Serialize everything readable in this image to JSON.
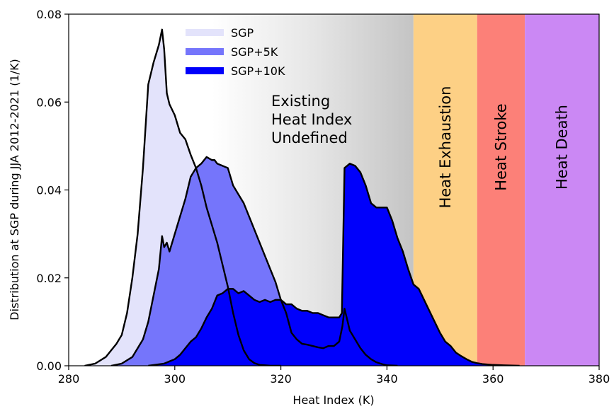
{
  "chart_data": {
    "type": "area",
    "title": "",
    "xlabel": "Heat Index (K)",
    "ylabel": "Distribution at SGP during JJA 2012-2021 (1/K)",
    "xlim": [
      280,
      380
    ],
    "ylim": [
      0,
      0.08
    ],
    "xticks": [
      "280",
      "300",
      "320",
      "340",
      "360",
      "380"
    ],
    "yticks": [
      "0.00",
      "0.02",
      "0.04",
      "0.06",
      "0.08"
    ],
    "grid": false,
    "legend": "top-center",
    "regions": [
      {
        "label": "Existing Heat Index Undefined",
        "lines": [
          "Existing",
          "Heat Index",
          "Undefined"
        ],
        "x0": 307,
        "x1": 345,
        "color": "#c8c8c8",
        "gradient": true
      },
      {
        "label": "Heat Exhaustion",
        "x0": 345,
        "x1": 357,
        "color": "#fdd085"
      },
      {
        "label": "Heat Stroke",
        "x0": 357,
        "x1": 366,
        "color": "#fc8078"
      },
      {
        "label": "Heat Death",
        "x0": 366,
        "x1": 380,
        "color": "#cb88f4"
      }
    ],
    "series": [
      {
        "name": "SGP",
        "color": "#e3e3fb",
        "x": [
          283,
          285,
          287,
          288,
          289,
          290,
          291,
          292,
          293,
          294,
          295,
          296,
          297,
          297.6,
          298,
          298.5,
          299,
          300,
          301,
          302,
          303,
          304,
          305,
          306,
          307,
          308,
          309,
          310,
          311,
          312,
          313,
          314,
          315,
          316,
          317,
          318,
          319,
          320
        ],
        "values": [
          0,
          0.0005,
          0.002,
          0.0035,
          0.005,
          0.007,
          0.012,
          0.02,
          0.03,
          0.045,
          0.064,
          0.069,
          0.073,
          0.0765,
          0.072,
          0.062,
          0.0595,
          0.057,
          0.053,
          0.0515,
          0.048,
          0.045,
          0.041,
          0.036,
          0.032,
          0.028,
          0.023,
          0.018,
          0.012,
          0.007,
          0.0035,
          0.0015,
          0.0006,
          0.0002,
          0.0001,
          0,
          0,
          0
        ]
      },
      {
        "name": "SGP+5K",
        "color": "#7575fb",
        "x": [
          288,
          290,
          292,
          294,
          295,
          296,
          297,
          297.6,
          298,
          298.5,
          299,
          300,
          301,
          302,
          303,
          304,
          305,
          306,
          307,
          307.5,
          308,
          309,
          310,
          311,
          312,
          313,
          314,
          315,
          316,
          317,
          318,
          319,
          320,
          321,
          322,
          323,
          324,
          325,
          326,
          327,
          328,
          329,
          330,
          331,
          331.6,
          332,
          333,
          334,
          335,
          336,
          337,
          338,
          339,
          340,
          342
        ],
        "values": [
          0,
          0.0005,
          0.002,
          0.006,
          0.01,
          0.016,
          0.022,
          0.0295,
          0.027,
          0.028,
          0.026,
          0.03,
          0.034,
          0.038,
          0.043,
          0.045,
          0.046,
          0.0475,
          0.0468,
          0.0468,
          0.046,
          0.0455,
          0.045,
          0.041,
          0.039,
          0.037,
          0.034,
          0.031,
          0.028,
          0.025,
          0.022,
          0.019,
          0.015,
          0.012,
          0.0075,
          0.006,
          0.005,
          0.0048,
          0.0045,
          0.0042,
          0.004,
          0.0045,
          0.0045,
          0.0055,
          0.009,
          0.013,
          0.008,
          0.006,
          0.004,
          0.0025,
          0.0015,
          0.0008,
          0.0004,
          0.0001,
          0
        ]
      },
      {
        "name": "SGP+10K",
        "color": "#0000fb",
        "x": [
          295,
          298,
          300,
          301,
          302,
          303,
          304,
          305,
          306,
          307,
          308,
          309,
          310,
          311,
          312,
          313,
          314,
          315,
          316,
          317,
          318,
          319,
          320,
          321,
          322,
          323,
          324,
          325,
          326,
          327,
          328,
          329,
          330,
          331,
          331.5,
          332,
          333,
          334,
          335,
          336,
          337,
          338,
          339,
          340,
          341,
          342,
          343,
          344,
          345,
          346,
          347,
          348,
          349,
          350,
          351,
          352,
          353,
          354,
          355,
          356,
          357,
          358,
          360,
          362,
          365
        ],
        "values": [
          0,
          0.0005,
          0.0015,
          0.0025,
          0.004,
          0.0055,
          0.0065,
          0.0085,
          0.011,
          0.013,
          0.016,
          0.0165,
          0.0175,
          0.0175,
          0.0165,
          0.017,
          0.016,
          0.015,
          0.0145,
          0.015,
          0.0145,
          0.015,
          0.015,
          0.014,
          0.014,
          0.013,
          0.0125,
          0.0125,
          0.012,
          0.012,
          0.0115,
          0.011,
          0.011,
          0.011,
          0.012,
          0.045,
          0.046,
          0.0455,
          0.044,
          0.041,
          0.037,
          0.036,
          0.036,
          0.036,
          0.033,
          0.029,
          0.026,
          0.022,
          0.0185,
          0.0175,
          0.015,
          0.0125,
          0.01,
          0.0075,
          0.0055,
          0.0045,
          0.003,
          0.0022,
          0.0015,
          0.0009,
          0.0006,
          0.0004,
          0.0002,
          0.0001,
          0
        ]
      }
    ]
  }
}
